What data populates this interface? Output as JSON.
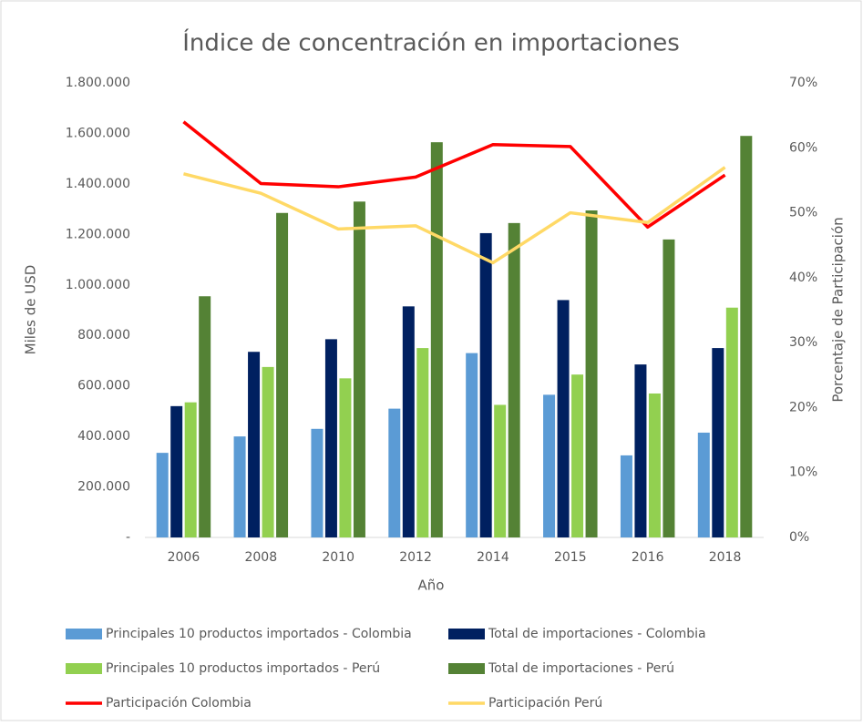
{
  "chart_data": {
    "type": "bar",
    "title": "Índice de concentración en importaciones",
    "x_label": "Año",
    "y_label": "Miles de USD",
    "y2_label": "Porcentaje de Participación",
    "categories": [
      "2006",
      "2008",
      "2010",
      "2012",
      "2014",
      "2015",
      "2016",
      "2018"
    ],
    "series": [
      {
        "name": "Principales 10 productos importados - Colombia",
        "color": "#5b9bd5",
        "type": "bar",
        "values": [
          335000,
          400000,
          430000,
          510000,
          730000,
          565000,
          325000,
          415000
        ]
      },
      {
        "name": "Total de importaciones - Colombia",
        "color": "#002060",
        "type": "bar",
        "values": [
          520000,
          735000,
          785000,
          915000,
          1205000,
          940000,
          685000,
          750000
        ]
      },
      {
        "name": "Principales 10 productos importados - Perú",
        "color": "#92d050",
        "type": "bar",
        "values": [
          535000,
          675000,
          630000,
          750000,
          525000,
          645000,
          570000,
          910000
        ]
      },
      {
        "name": "Total de importaciones - Perú",
        "color": "#548235",
        "type": "bar",
        "values": [
          955000,
          1285000,
          1330000,
          1565000,
          1245000,
          1295000,
          1180000,
          1590000
        ]
      },
      {
        "name": "Participación Colombia",
        "color": "#ff0000",
        "type": "line",
        "axis": "y2",
        "values": [
          64,
          54.5,
          54,
          55.5,
          60.5,
          60.2,
          47.8,
          55.8
        ]
      },
      {
        "name": "Participación Perú",
        "color": "#ffd966",
        "type": "line",
        "axis": "y2",
        "values": [
          56,
          53,
          47.5,
          48,
          42.3,
          50,
          48.5,
          57
        ]
      }
    ],
    "ylim": [
      0,
      1800000
    ],
    "yticks": [
      {
        "value": 0,
        "label": "-"
      },
      {
        "value": 200000,
        "label": "200.000"
      },
      {
        "value": 400000,
        "label": "400.000"
      },
      {
        "value": 600000,
        "label": "600.000"
      },
      {
        "value": 800000,
        "label": "800.000"
      },
      {
        "value": 1000000,
        "label": "1.000.000"
      },
      {
        "value": 1200000,
        "label": "1.200.000"
      },
      {
        "value": 1400000,
        "label": "1.400.000"
      },
      {
        "value": 1600000,
        "label": "1.600.000"
      },
      {
        "value": 1800000,
        "label": "1.800.000"
      }
    ],
    "y2lim": [
      0,
      70
    ],
    "y2ticks": [
      {
        "value": 0,
        "label": "0%"
      },
      {
        "value": 10,
        "label": "10%"
      },
      {
        "value": 20,
        "label": "20%"
      },
      {
        "value": 30,
        "label": "30%"
      },
      {
        "value": 40,
        "label": "40%"
      },
      {
        "value": 50,
        "label": "50%"
      },
      {
        "value": 60,
        "label": "60%"
      },
      {
        "value": 70,
        "label": "70%"
      }
    ],
    "legend": "bottom"
  }
}
